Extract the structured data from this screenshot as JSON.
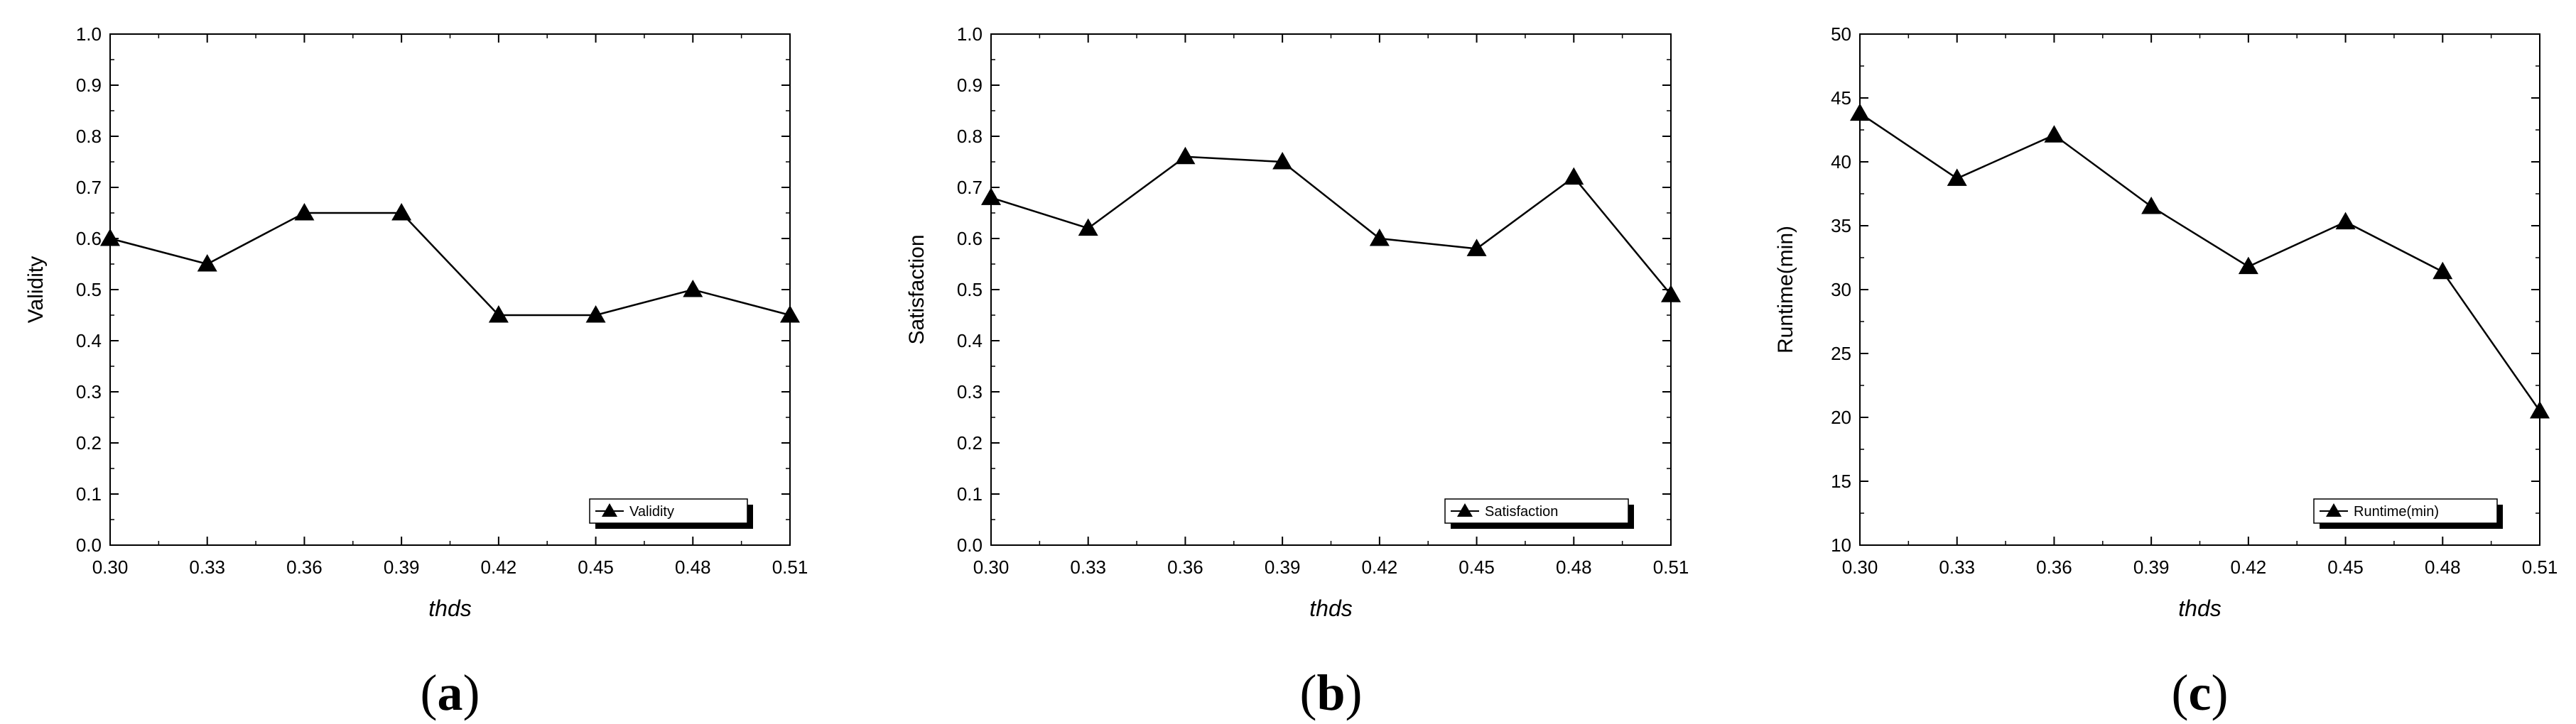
{
  "chart_data": [
    {
      "type": "line",
      "panel_label": "a",
      "x": [
        0.3,
        0.33,
        0.36,
        0.39,
        0.42,
        0.45,
        0.48,
        0.51
      ],
      "x_tick_labels": [
        "0.30",
        "0.33",
        "0.36",
        "0.39",
        "0.42",
        "0.45",
        "0.48",
        "0.51"
      ],
      "series": [
        {
          "name": "Validity",
          "values": [
            0.6,
            0.55,
            0.65,
            0.65,
            0.45,
            0.45,
            0.5,
            0.45
          ]
        }
      ],
      "xlabel": "thds",
      "ylabel": "Validity",
      "ylim": [
        0.0,
        1.0
      ],
      "y_tick_labels": [
        "0.0",
        "0.1",
        "0.2",
        "0.3",
        "0.4",
        "0.5",
        "0.6",
        "0.7",
        "0.8",
        "0.9",
        "1.0"
      ],
      "marker": "triangle",
      "legend_position": "bottom-right",
      "grid": false
    },
    {
      "type": "line",
      "panel_label": "b",
      "x": [
        0.3,
        0.33,
        0.36,
        0.39,
        0.42,
        0.45,
        0.48,
        0.51
      ],
      "x_tick_labels": [
        "0.30",
        "0.33",
        "0.36",
        "0.39",
        "0.42",
        "0.45",
        "0.48",
        "0.51"
      ],
      "series": [
        {
          "name": "Satisfaction",
          "values": [
            0.68,
            0.62,
            0.76,
            0.75,
            0.6,
            0.58,
            0.72,
            0.49
          ]
        }
      ],
      "xlabel": "thds",
      "ylabel": "Satisfaction",
      "ylim": [
        0.0,
        1.0
      ],
      "y_tick_labels": [
        "0.0",
        "0.1",
        "0.2",
        "0.3",
        "0.4",
        "0.5",
        "0.6",
        "0.7",
        "0.8",
        "0.9",
        "1.0"
      ],
      "marker": "triangle",
      "legend_position": "bottom-right",
      "grid": false
    },
    {
      "type": "line",
      "panel_label": "c",
      "x": [
        0.3,
        0.33,
        0.36,
        0.39,
        0.42,
        0.45,
        0.48,
        0.51
      ],
      "x_tick_labels": [
        "0.30",
        "0.33",
        "0.36",
        "0.39",
        "0.42",
        "0.45",
        "0.48",
        "0.51"
      ],
      "series": [
        {
          "name": "Runtime(min)",
          "values": [
            43.8,
            38.7,
            42.1,
            36.5,
            31.8,
            35.3,
            31.4,
            20.5
          ]
        }
      ],
      "xlabel": "thds",
      "ylabel": "Runtime(min)",
      "ylim": [
        10,
        50
      ],
      "y_tick_labels": [
        "10",
        "15",
        "20",
        "25",
        "30",
        "35",
        "40",
        "45",
        "50"
      ],
      "marker": "triangle",
      "legend_position": "bottom-right",
      "grid": false
    }
  ],
  "colors": {
    "line": "#000000",
    "axes": "#000000",
    "background": "#ffffff"
  }
}
